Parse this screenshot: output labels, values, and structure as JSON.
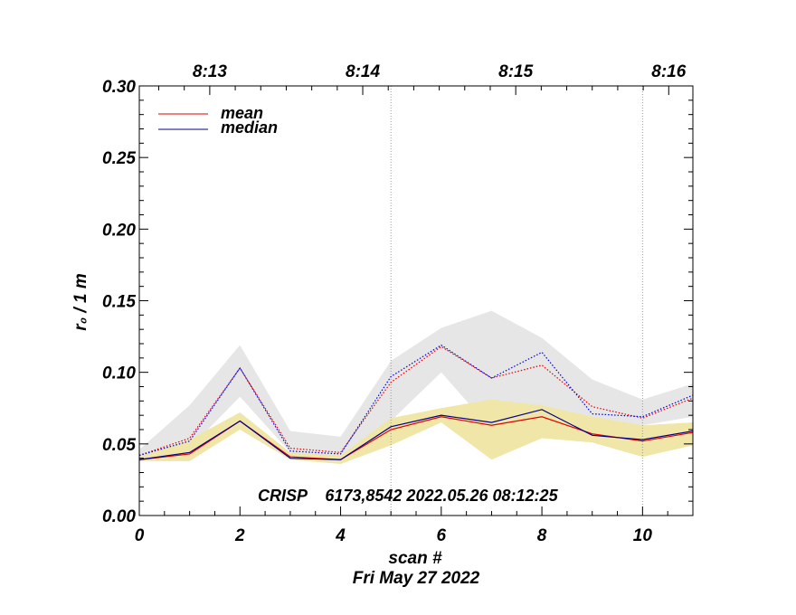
{
  "chart_data": {
    "type": "line",
    "title": "",
    "xlabel": "scan #",
    "ylabel": "r₀ / 1 m",
    "date_label": "Fri May 27 2022",
    "annotation": "CRISP    6173,8542 2022.05.26 08:12:25",
    "xlim": [
      0,
      11
    ],
    "ylim": [
      0,
      0.3
    ],
    "x_ticks": [
      0,
      2,
      4,
      6,
      8,
      10
    ],
    "x_tick_labels": [
      "0",
      "2",
      "4",
      "6",
      "8",
      "10"
    ],
    "y_ticks": [
      0,
      0.05,
      0.1,
      0.15,
      0.2,
      0.25,
      0.3
    ],
    "y_tick_labels": [
      "0.00",
      "0.05",
      "0.10",
      "0.15",
      "0.20",
      "0.25",
      "0.30"
    ],
    "top_axis": {
      "positions": [
        1.4,
        4.44,
        7.48,
        10.52
      ],
      "labels": [
        "8:13",
        "8:14",
        "8:15",
        "8:16"
      ]
    },
    "vertical_gridlines": [
      5,
      10
    ],
    "x": [
      0,
      1,
      2,
      3,
      4,
      5,
      6,
      7,
      8,
      9,
      10,
      11
    ],
    "series": [
      {
        "name": "mean",
        "style": "solid",
        "color": "#e00000",
        "values": [
          0.039,
          0.043,
          0.066,
          0.041,
          0.039,
          0.06,
          0.069,
          0.063,
          0.069,
          0.057,
          0.052,
          0.058
        ]
      },
      {
        "name": "median",
        "style": "solid",
        "color": "#00008b",
        "values": [
          0.039,
          0.044,
          0.066,
          0.04,
          0.039,
          0.062,
          0.07,
          0.065,
          0.074,
          0.056,
          0.053,
          0.059
        ]
      },
      {
        "name": "mean (upper)",
        "style": "dotted",
        "color": "#e00000",
        "values": [
          0.042,
          0.054,
          0.103,
          0.047,
          0.044,
          0.093,
          0.118,
          0.096,
          0.105,
          0.076,
          0.068,
          0.082
        ]
      },
      {
        "name": "median (upper)",
        "style": "dotted",
        "color": "#0000dd",
        "values": [
          0.042,
          0.052,
          0.103,
          0.045,
          0.043,
          0.097,
          0.119,
          0.096,
          0.114,
          0.071,
          0.069,
          0.084
        ]
      }
    ],
    "bands": [
      {
        "name": "gray range",
        "color": "#e6e6e6",
        "upper": [
          0.046,
          0.077,
          0.119,
          0.059,
          0.055,
          0.108,
          0.131,
          0.143,
          0.124,
          0.095,
          0.081,
          0.092
        ],
        "lower": [
          0.04,
          0.047,
          0.083,
          0.044,
          0.04,
          0.066,
          0.1,
          0.06,
          0.06,
          0.068,
          0.063,
          0.069
        ]
      },
      {
        "name": "yellow range",
        "color": "#efe6a8",
        "upper": [
          0.041,
          0.053,
          0.072,
          0.044,
          0.042,
          0.068,
          0.075,
          0.081,
          0.077,
          0.069,
          0.063,
          0.065
        ],
        "lower": [
          0.038,
          0.038,
          0.06,
          0.039,
          0.036,
          0.049,
          0.065,
          0.039,
          0.054,
          0.051,
          0.041,
          0.049
        ]
      }
    ],
    "legend": {
      "position": "top-left",
      "entries": [
        "mean",
        "median"
      ]
    }
  }
}
